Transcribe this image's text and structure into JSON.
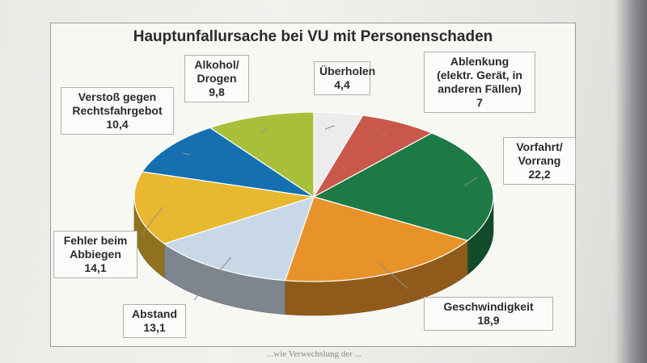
{
  "chart_data": {
    "type": "pie",
    "title": "Hauptunfallursache bei VU mit Personenschaden",
    "categories": [
      "Überholen",
      "Ablenkung\n(elektr. Gerät, in\nanderen Fällen)",
      "Vorfahrt/\nVorrang",
      "Geschwindigkeit",
      "Abstand",
      "Fehler beim\nAbbiegen",
      "Verstoß gegen\nRechtsfahrgebot",
      "Alkohol/\nDrogen"
    ],
    "value_labels": [
      "4,4",
      "7",
      "22,2",
      "18,9",
      "13,1",
      "14,1",
      "10,4",
      "9,8"
    ],
    "values": [
      4.4,
      7.0,
      22.2,
      18.9,
      13.1,
      14.1,
      10.4,
      9.8
    ],
    "colors": [
      "#ececea",
      "#c8584a",
      "#1e7a45",
      "#e8922a",
      "#c9d8e6",
      "#e8b830",
      "#1470b0",
      "#a9bf3a"
    ],
    "legend": "none",
    "three_d": true
  },
  "background_text": "...wie Verwechslung der ..."
}
